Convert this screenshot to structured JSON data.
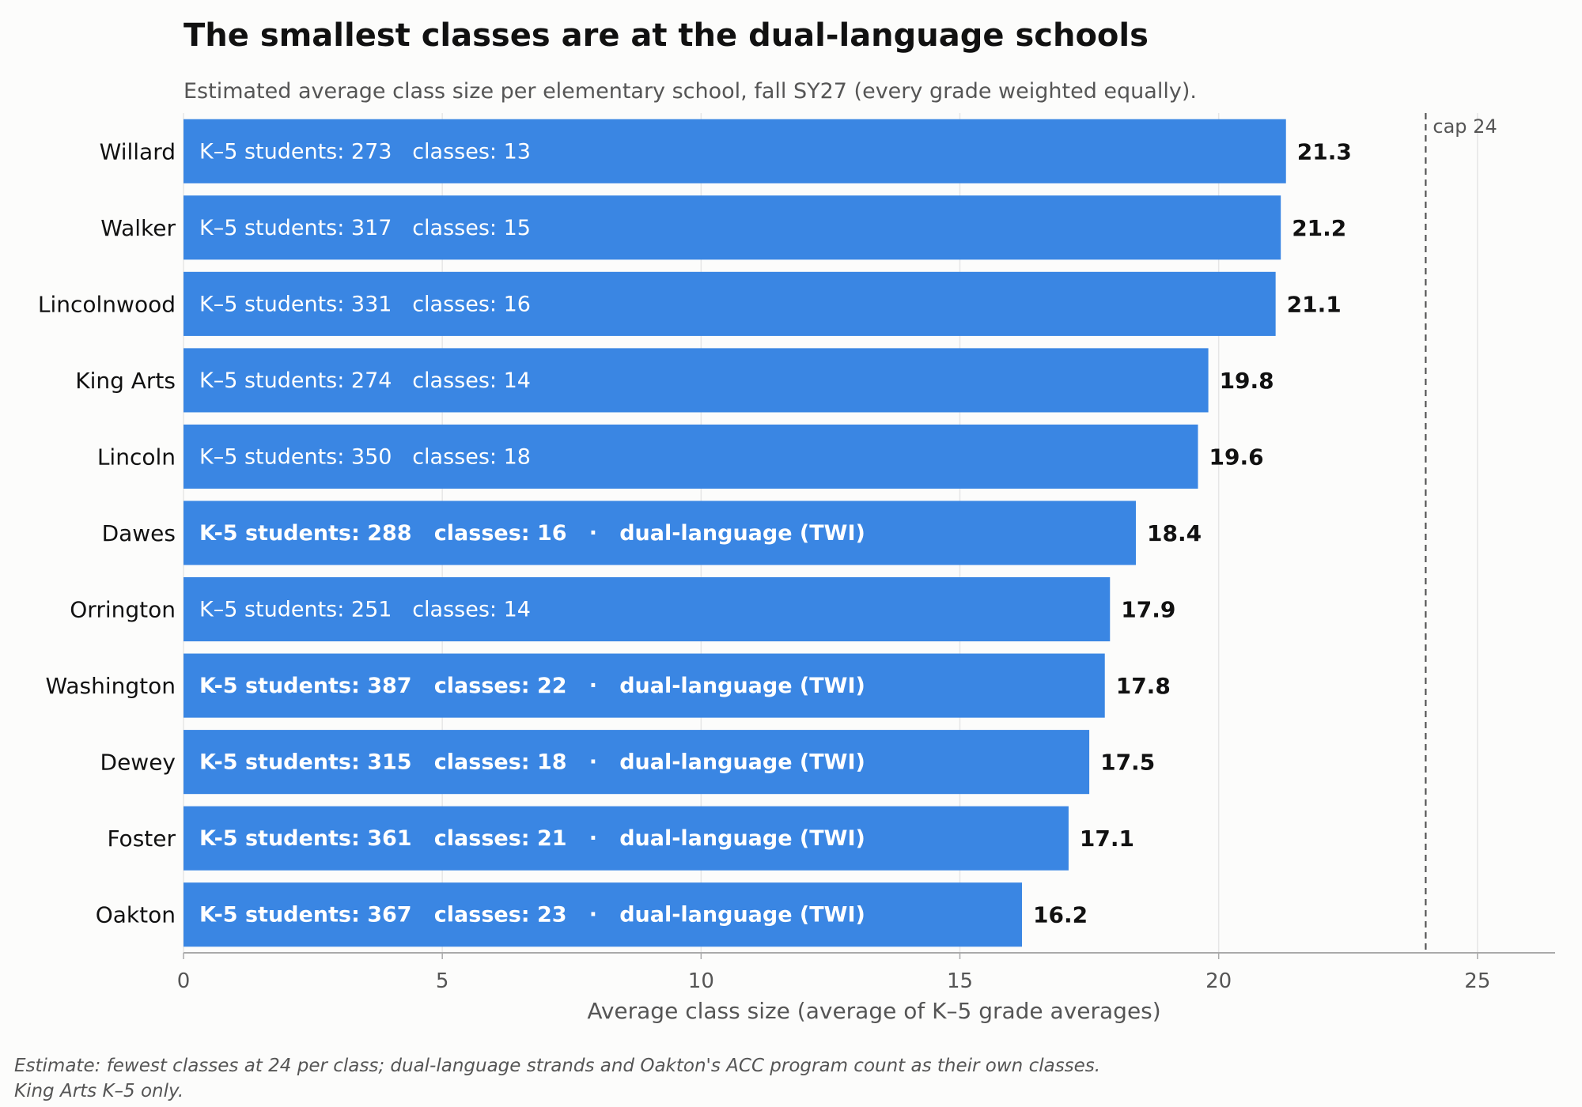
{
  "chart_data": {
    "type": "bar",
    "orientation": "horizontal",
    "title": "The smallest classes are at the dual-language schools",
    "subtitle": "Estimated average class size per elementary school, fall SY27 (every grade weighted equally).",
    "xlabel": "Average class size (average of K–5 grade averages)",
    "ylabel": "",
    "xlim": [
      0,
      26.5
    ],
    "xticks": [
      0,
      5,
      10,
      15,
      20,
      25
    ],
    "grid": true,
    "reference_line": {
      "value": 24,
      "label": "cap 24"
    },
    "colors": {
      "bar": "#3a86e3",
      "grid": "#e6e6e6",
      "axis": "#aaaaaa"
    },
    "categories": [
      "Willard",
      "Walker",
      "Lincolnwood",
      "King Arts",
      "Lincoln",
      "Dawes",
      "Orrington",
      "Washington",
      "Dewey",
      "Foster",
      "Oakton"
    ],
    "values": [
      21.3,
      21.2,
      21.1,
      19.8,
      19.6,
      18.4,
      17.9,
      17.8,
      17.5,
      17.1,
      16.2
    ],
    "value_labels": [
      "21.3",
      "21.2",
      "21.1",
      "19.8",
      "19.6",
      "18.4",
      "17.9",
      "17.8",
      "17.5",
      "17.1",
      "16.2"
    ],
    "bar_labels": [
      "K–5 students: 273   classes: 13",
      "K–5 students: 317   classes: 15",
      "K–5 students: 331   classes: 16",
      "K–5 students: 274   classes: 14",
      "K–5 students: 350   classes: 18",
      "K-5 students: 288   classes: 16   ·   dual-language (TWI)",
      "K–5 students: 251   classes: 14",
      "K-5 students: 387   classes: 22   ·   dual-language (TWI)",
      "K-5 students: 315   classes: 18   ·   dual-language (TWI)",
      "K-5 students: 361   classes: 21   ·   dual-language (TWI)",
      "K-5 students: 367   classes: 23   ·   dual-language (TWI)"
    ],
    "dual_language": [
      false,
      false,
      false,
      false,
      false,
      true,
      false,
      true,
      true,
      true,
      true
    ]
  },
  "footnote": [
    "Estimate: fewest classes at 24 per class; dual-language strands and Oakton's ACC program count as their own classes.",
    "King Arts K–5 only."
  ]
}
